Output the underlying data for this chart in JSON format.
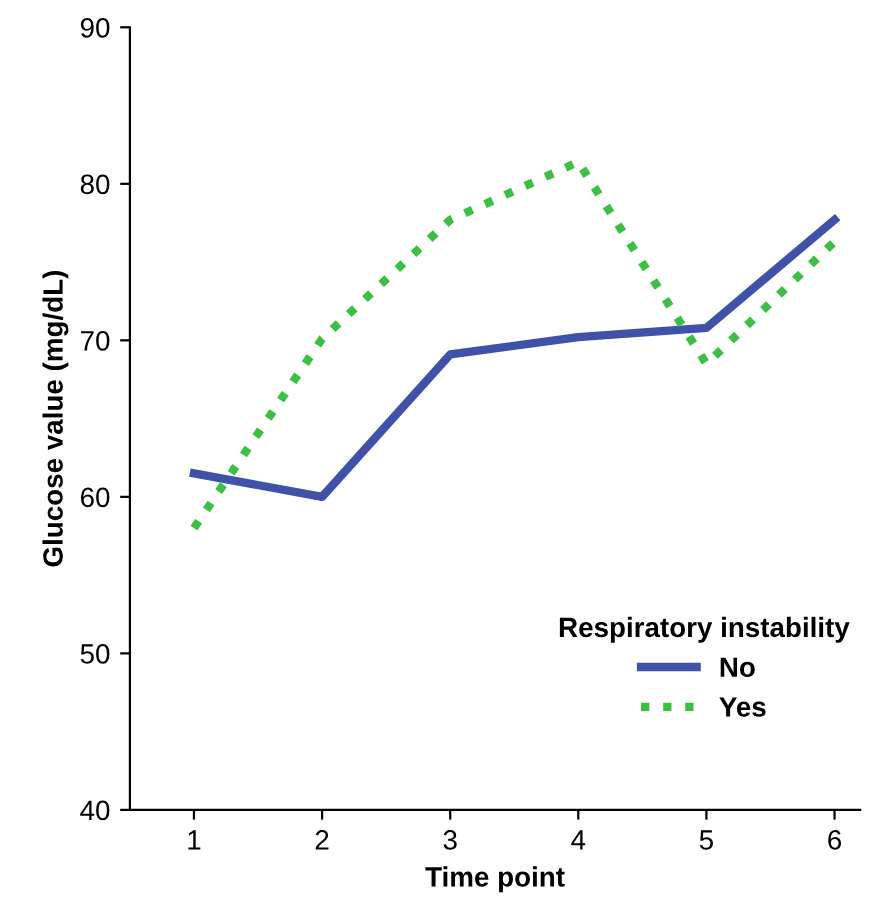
{
  "chart_data": {
    "type": "line",
    "xlabel": "Time point",
    "ylabel": "Glucose value (mg/dL)",
    "categories": [
      "1",
      "2",
      "3",
      "4",
      "5",
      "6"
    ],
    "series": [
      {
        "name": "No",
        "color": "#3f51a8",
        "values": [
          61.5,
          60.0,
          69.1,
          70.2,
          70.8,
          77.7
        ],
        "line_style": "solid"
      },
      {
        "name": "Yes",
        "color": "#3dbf45",
        "values": [
          58.0,
          70.1,
          77.7,
          81.4,
          68.5,
          76.3
        ],
        "line_style": "dotted"
      }
    ],
    "ylim": [
      40,
      90
    ],
    "yticks": [
      40,
      50,
      60,
      70,
      80,
      90
    ],
    "legend": "bottom right",
    "legend_title": "Respiratory instability",
    "grid": false,
    "marker": "none"
  }
}
